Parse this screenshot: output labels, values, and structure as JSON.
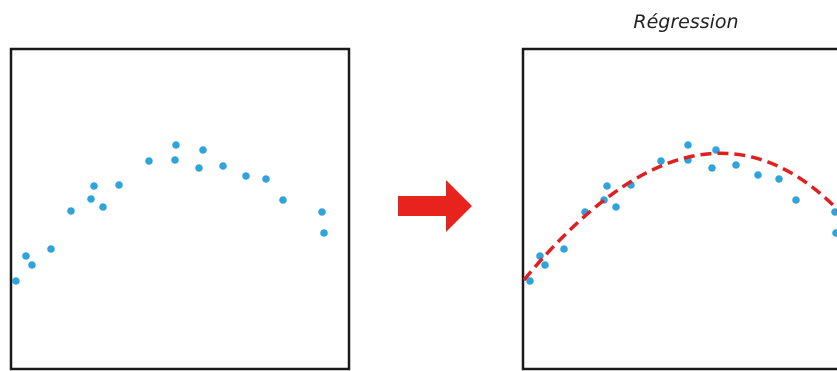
{
  "title": "Régression"
}
